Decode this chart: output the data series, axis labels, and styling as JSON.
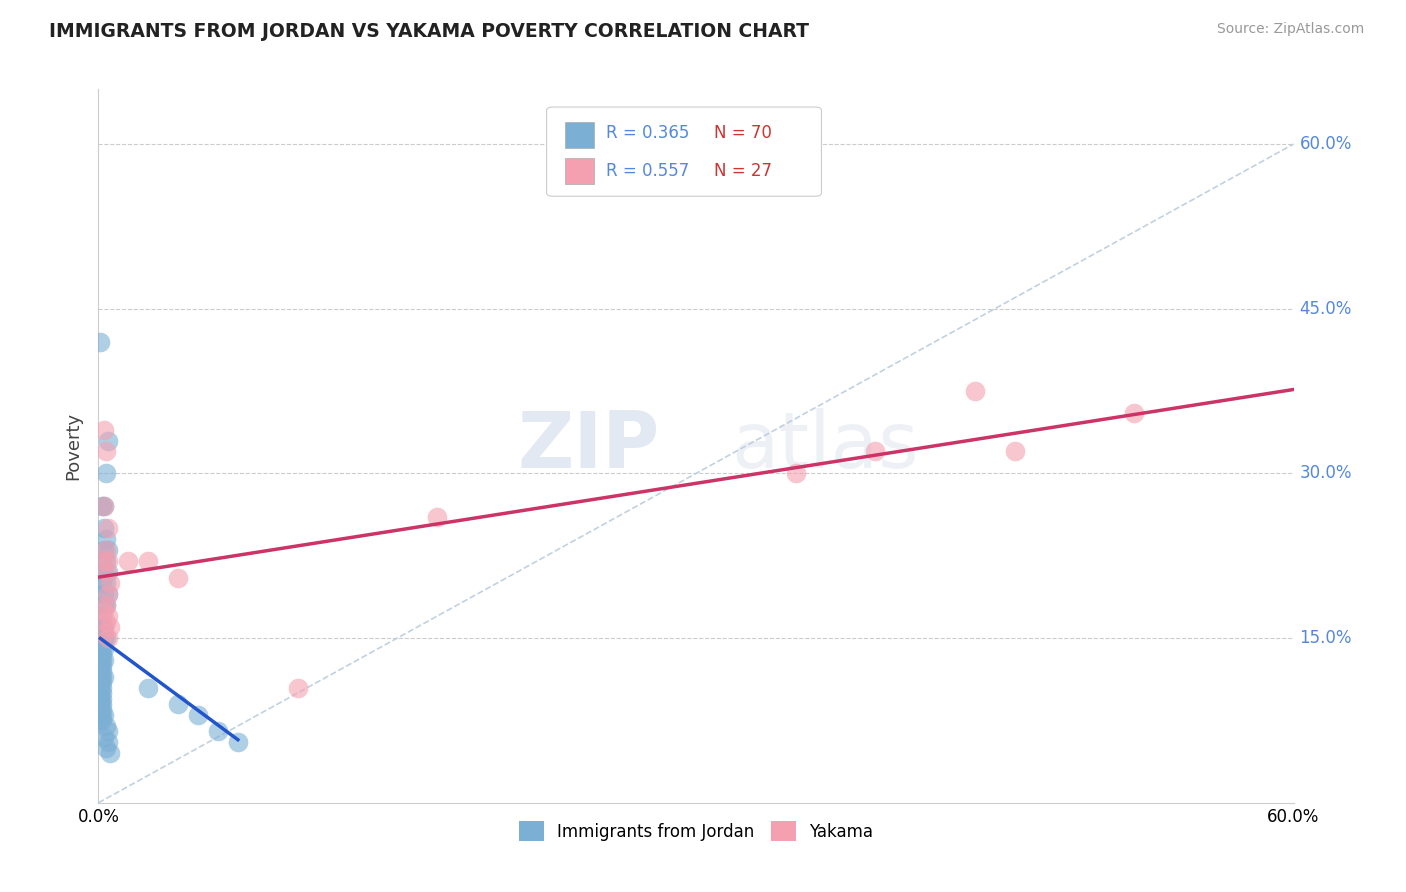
{
  "title": "IMMIGRANTS FROM JORDAN VS YAKAMA POVERTY CORRELATION CHART",
  "source": "Source: ZipAtlas.com",
  "ylabel": "Poverty",
  "xlim": [
    0,
    0.6
  ],
  "ylim": [
    0,
    0.65
  ],
  "y_ticks": [
    0.15,
    0.3,
    0.45,
    0.6
  ],
  "y_tick_labels": [
    "15.0%",
    "30.0%",
    "45.0%",
    "60.0%"
  ],
  "legend_label1": "Immigrants from Jordan",
  "legend_label2": "Yakama",
  "r1": "0.365",
  "n1": "70",
  "r2": "0.557",
  "n2": "27",
  "blue_color": "#7bafd4",
  "pink_color": "#f4a0b0",
  "blue_line_color": "#2255cc",
  "pink_line_color": "#cc3366",
  "watermark_zip": "ZIP",
  "watermark_atlas": "atlas",
  "background_color": "#ffffff",
  "blue_scatter": [
    [
      0.001,
      0.42
    ],
    [
      0.005,
      0.33
    ],
    [
      0.004,
      0.3
    ],
    [
      0.003,
      0.27
    ],
    [
      0.002,
      0.27
    ],
    [
      0.003,
      0.25
    ],
    [
      0.004,
      0.24
    ],
    [
      0.005,
      0.23
    ],
    [
      0.003,
      0.23
    ],
    [
      0.002,
      0.22
    ],
    [
      0.004,
      0.22
    ],
    [
      0.003,
      0.21
    ],
    [
      0.005,
      0.21
    ],
    [
      0.002,
      0.2
    ],
    [
      0.004,
      0.2
    ],
    [
      0.003,
      0.19
    ],
    [
      0.005,
      0.19
    ],
    [
      0.004,
      0.18
    ],
    [
      0.003,
      0.18
    ],
    [
      0.002,
      0.17
    ],
    [
      0.001,
      0.17
    ],
    [
      0.002,
      0.16
    ],
    [
      0.003,
      0.16
    ],
    [
      0.001,
      0.155
    ],
    [
      0.002,
      0.155
    ],
    [
      0.003,
      0.15
    ],
    [
      0.004,
      0.15
    ],
    [
      0.001,
      0.14
    ],
    [
      0.002,
      0.14
    ],
    [
      0.003,
      0.14
    ],
    [
      0.001,
      0.135
    ],
    [
      0.002,
      0.135
    ],
    [
      0.001,
      0.13
    ],
    [
      0.002,
      0.13
    ],
    [
      0.003,
      0.13
    ],
    [
      0.001,
      0.125
    ],
    [
      0.002,
      0.125
    ],
    [
      0.001,
      0.12
    ],
    [
      0.002,
      0.12
    ],
    [
      0.001,
      0.115
    ],
    [
      0.002,
      0.115
    ],
    [
      0.003,
      0.115
    ],
    [
      0.001,
      0.11
    ],
    [
      0.002,
      0.11
    ],
    [
      0.001,
      0.105
    ],
    [
      0.002,
      0.105
    ],
    [
      0.001,
      0.1
    ],
    [
      0.002,
      0.1
    ],
    [
      0.001,
      0.095
    ],
    [
      0.002,
      0.095
    ],
    [
      0.001,
      0.09
    ],
    [
      0.002,
      0.09
    ],
    [
      0.001,
      0.085
    ],
    [
      0.002,
      0.085
    ],
    [
      0.001,
      0.08
    ],
    [
      0.002,
      0.08
    ],
    [
      0.003,
      0.08
    ],
    [
      0.001,
      0.075
    ],
    [
      0.002,
      0.075
    ],
    [
      0.004,
      0.07
    ],
    [
      0.005,
      0.065
    ],
    [
      0.003,
      0.06
    ],
    [
      0.005,
      0.055
    ],
    [
      0.004,
      0.05
    ],
    [
      0.006,
      0.045
    ],
    [
      0.025,
      0.105
    ],
    [
      0.04,
      0.09
    ],
    [
      0.05,
      0.08
    ],
    [
      0.06,
      0.065
    ],
    [
      0.07,
      0.055
    ]
  ],
  "pink_scatter": [
    [
      0.003,
      0.34
    ],
    [
      0.004,
      0.32
    ],
    [
      0.003,
      0.27
    ],
    [
      0.005,
      0.25
    ],
    [
      0.004,
      0.23
    ],
    [
      0.003,
      0.22
    ],
    [
      0.005,
      0.22
    ],
    [
      0.004,
      0.21
    ],
    [
      0.006,
      0.2
    ],
    [
      0.005,
      0.19
    ],
    [
      0.004,
      0.18
    ],
    [
      0.003,
      0.175
    ],
    [
      0.005,
      0.17
    ],
    [
      0.004,
      0.165
    ],
    [
      0.006,
      0.16
    ],
    [
      0.003,
      0.155
    ],
    [
      0.005,
      0.15
    ],
    [
      0.015,
      0.22
    ],
    [
      0.025,
      0.22
    ],
    [
      0.04,
      0.205
    ],
    [
      0.17,
      0.26
    ],
    [
      0.35,
      0.3
    ],
    [
      0.39,
      0.32
    ],
    [
      0.44,
      0.375
    ],
    [
      0.46,
      0.32
    ],
    [
      0.52,
      0.355
    ],
    [
      0.1,
      0.105
    ]
  ]
}
